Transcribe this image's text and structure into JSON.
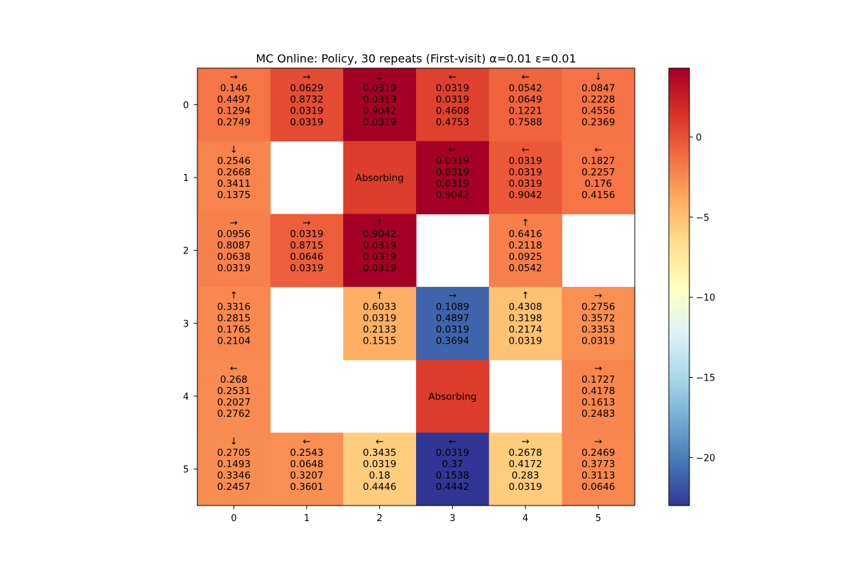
{
  "chart_data": {
    "type": "heatmap",
    "title": "MC Online: Policy, 30 repeats (First-visit) α=0.01 ε=0.01",
    "xlabel": "",
    "ylabel": "",
    "x_ticks": [
      "0",
      "1",
      "2",
      "3",
      "4",
      "5"
    ],
    "y_ticks": [
      "0",
      "1",
      "2",
      "3",
      "4",
      "5"
    ],
    "colormap": "RdYlBu_r",
    "colorbar": {
      "range": [
        -23,
        4.3
      ],
      "ticks": [
        0,
        -5,
        -10,
        -15,
        -20
      ],
      "tick_labels": [
        "0",
        "−5",
        "−10",
        "−15",
        "−20"
      ]
    },
    "cells": [
      [
        {
          "arrow": "→",
          "probs": [
            "0.146",
            "0.4497",
            "0.1294",
            "0.2749"
          ],
          "value": -1.5
        },
        {
          "arrow": "→",
          "probs": [
            "0.0629",
            "0.8732",
            "0.0319",
            "0.0319"
          ],
          "value": 0.3
        },
        {
          "arrow": "↓",
          "probs": [
            "0.0319",
            "0.0319",
            "0.9042",
            "0.0319"
          ],
          "value": 4.3
        },
        {
          "arrow": "←",
          "probs": [
            "0.0319",
            "0.0319",
            "0.4608",
            "0.4753"
          ],
          "value": 0.8
        },
        {
          "arrow": "←",
          "probs": [
            "0.0542",
            "0.0649",
            "0.1221",
            "0.7588"
          ],
          "value": -0.7
        },
        {
          "arrow": "↓",
          "probs": [
            "0.0847",
            "0.2228",
            "0.4556",
            "0.2369"
          ],
          "value": -1.4
        }
      ],
      [
        {
          "arrow": "↓",
          "probs": [
            "0.2546",
            "0.2668",
            "0.3411",
            "0.1375"
          ],
          "value": -2.1
        },
        null,
        {
          "label": "Absorbing",
          "value": 1.0
        },
        {
          "arrow": "←",
          "probs": [
            "0.0319",
            "0.0319",
            "0.0319",
            "0.9042"
          ],
          "value": 4.3
        },
        {
          "arrow": "←",
          "probs": [
            "0.0319",
            "0.0319",
            "0.0319",
            "0.9042"
          ],
          "value": -0.2
        },
        {
          "arrow": "←",
          "probs": [
            "0.1827",
            "0.2257",
            "0.176",
            "0.4156"
          ],
          "value": -1.5
        }
      ],
      [
        {
          "arrow": "→",
          "probs": [
            "0.0956",
            "0.8087",
            "0.0638",
            "0.0319"
          ],
          "value": -2.0
        },
        {
          "arrow": "→",
          "probs": [
            "0.0319",
            "0.8715",
            "0.0646",
            "0.0319"
          ],
          "value": -0.5
        },
        {
          "arrow": "↑",
          "probs": [
            "0.9042",
            "0.0319",
            "0.0319",
            "0.0319"
          ],
          "value": 4.3
        },
        null,
        {
          "arrow": "↑",
          "probs": [
            "0.6416",
            "0.2118",
            "0.0925",
            "0.0542"
          ],
          "value": -1.9
        },
        null
      ],
      [
        {
          "arrow": "↑",
          "probs": [
            "0.3316",
            "0.2815",
            "0.1765",
            "0.2104"
          ],
          "value": -2.3
        },
        null,
        {
          "arrow": "↑",
          "probs": [
            "0.6033",
            "0.0319",
            "0.2133",
            "0.1515"
          ],
          "value": -4.0
        },
        {
          "arrow": "→",
          "probs": [
            "0.1089",
            "0.4897",
            "0.0319",
            "0.3694"
          ],
          "value": -21.0
        },
        {
          "arrow": "↑",
          "probs": [
            "0.4308",
            "0.3198",
            "0.2174",
            "0.0319"
          ],
          "value": -5.0
        },
        {
          "arrow": "→",
          "probs": [
            "0.2756",
            "0.3572",
            "0.3353",
            "0.0319"
          ],
          "value": -2.6
        }
      ],
      [
        {
          "arrow": "←",
          "probs": [
            "0.268",
            "0.2531",
            "0.2027",
            "0.2762"
          ],
          "value": -2.4
        },
        null,
        null,
        {
          "label": "Absorbing",
          "value": 1.0
        },
        null,
        {
          "arrow": "→",
          "probs": [
            "0.1727",
            "0.4178",
            "0.1613",
            "0.2483"
          ],
          "value": -2.2
        }
      ],
      [
        {
          "arrow": "↓",
          "probs": [
            "0.2705",
            "0.1493",
            "0.3346",
            "0.2457"
          ],
          "value": -2.5
        },
        {
          "arrow": "←",
          "probs": [
            "0.2543",
            "0.0648",
            "0.3207",
            "0.3601"
          ],
          "value": -2.6
        },
        {
          "arrow": "←",
          "probs": [
            "0.3435",
            "0.0319",
            "0.18",
            "0.4446"
          ],
          "value": -5.6
        },
        {
          "arrow": "←",
          "probs": [
            "0.0319",
            "0.37",
            "0.1538",
            "0.4442"
          ],
          "value": -23.0
        },
        {
          "arrow": "→",
          "probs": [
            "0.2678",
            "0.4172",
            "0.283",
            "0.0319"
          ],
          "value": -5.6
        },
        {
          "arrow": "→",
          "probs": [
            "0.2469",
            "0.3773",
            "0.3113",
            "0.0646"
          ],
          "value": -2.3
        }
      ]
    ]
  }
}
